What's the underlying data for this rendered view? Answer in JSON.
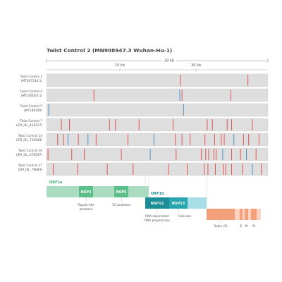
{
  "title": "Twist Control 2 (MN908947.3 Wuhan-Hu-1)",
  "genome_length_label": "29 kb",
  "axis_ticks": [
    "10 kb",
    "20 kb"
  ],
  "colors": {
    "track_bg": "#dedede",
    "track_border": "#cccccc",
    "mut_red": "#e05555",
    "mut_blue": "#4a90c8",
    "orf1a_light": "#a9dcc0",
    "orf1a_dark": "#5cbf8a",
    "orf1b_dark": "#1a8d96",
    "orf1b_light": "#a6dde6",
    "spike": "#f2a07a",
    "spike_light": "#fbd3c0",
    "orf1a_text": "#3daa6e",
    "orf1b_text": "#1a8d96"
  },
  "tracks": [
    {
      "name": "Twist Control 1",
      "id": "(MT007544.1)",
      "muts": [
        [
          18.1,
          "r"
        ],
        [
          27.2,
          "r"
        ]
      ]
    },
    {
      "name": "Twist Control 4",
      "id": "(MT106054.1)",
      "muts": [
        [
          6.4,
          "r"
        ],
        [
          18.0,
          "b"
        ],
        [
          18.3,
          "r"
        ],
        [
          24.9,
          "r"
        ]
      ]
    },
    {
      "name": "Twist Control 5",
      "id": "(MT188340)",
      "muts": [
        [
          0.3,
          "b"
        ],
        [
          18.5,
          "b"
        ]
      ]
    },
    {
      "name": "Twist Control 7",
      "id": "(EPI_ISL_418227)",
      "muts": [
        [
          2.0,
          "r"
        ],
        [
          3.1,
          "r"
        ],
        [
          8.5,
          "r"
        ],
        [
          9.3,
          "r"
        ],
        [
          12.5,
          "r"
        ],
        [
          17.1,
          "r"
        ],
        [
          21.7,
          "r"
        ],
        [
          22.4,
          "r"
        ],
        [
          24.4,
          "r"
        ],
        [
          25.0,
          "r"
        ],
        [
          27.8,
          "r"
        ]
      ]
    },
    {
      "name": "Twist Control 14",
      "id": "(EPI_ISL_710528)",
      "muts": [
        [
          1.5,
          "r"
        ],
        [
          2.3,
          "r"
        ],
        [
          2.9,
          "b"
        ],
        [
          4.3,
          "r"
        ],
        [
          5.6,
          "b"
        ],
        [
          6.7,
          "r"
        ],
        [
          11.0,
          "r"
        ],
        [
          14.5,
          "b"
        ],
        [
          17.4,
          "r"
        ],
        [
          18.3,
          "r"
        ],
        [
          19.4,
          "r"
        ],
        [
          21.4,
          "r"
        ],
        [
          22.7,
          "r"
        ],
        [
          23.6,
          "r"
        ],
        [
          24.0,
          "r"
        ],
        [
          25.3,
          "b"
        ],
        [
          26.6,
          "r"
        ],
        [
          27.3,
          "r"
        ],
        [
          28.7,
          "r"
        ]
      ]
    },
    {
      "name": "Twist Control 16",
      "id": "(EPI_ISL_678597)",
      "muts": [
        [
          0.2,
          "r"
        ],
        [
          3.4,
          "r"
        ],
        [
          5.1,
          "r"
        ],
        [
          10.1,
          "r"
        ],
        [
          14.0,
          "b"
        ],
        [
          17.5,
          "r"
        ],
        [
          20.9,
          "r"
        ],
        [
          21.5,
          "r"
        ],
        [
          21.9,
          "r"
        ],
        [
          22.6,
          "r"
        ],
        [
          22.9,
          "r"
        ],
        [
          23.8,
          "b"
        ],
        [
          25.0,
          "r"
        ],
        [
          26.2,
          "r"
        ],
        [
          27.0,
          "b"
        ],
        [
          28.3,
          "r"
        ]
      ]
    },
    {
      "name": "Twist Control 17",
      "id": "(EPI_ISL_79683)",
      "muts": [
        [
          0.9,
          "r"
        ],
        [
          4.2,
          "r"
        ],
        [
          8.2,
          "r"
        ],
        [
          11.7,
          "r"
        ],
        [
          16.5,
          "r"
        ],
        [
          19.0,
          "r"
        ],
        [
          21.3,
          "r"
        ],
        [
          21.8,
          "r"
        ],
        [
          22.8,
          "r"
        ],
        [
          23.9,
          "r"
        ],
        [
          24.2,
          "r"
        ],
        [
          25.0,
          "r"
        ],
        [
          26.5,
          "r"
        ],
        [
          27.8,
          "b"
        ],
        [
          29.0,
          "r"
        ]
      ]
    }
  ],
  "genes": {
    "orf1a_label": "ORF1a",
    "orf1b_label": "ORF1b",
    "nsp3": "NSP3",
    "nsp5": "NSP5",
    "nsp12": "NSP12",
    "nsp13": "NSP13",
    "nsp3_desc": [
      "Papain-like",
      "protease"
    ],
    "nsp5_desc": "3C-protease",
    "nsp12_desc": [
      "RNA-dependent",
      "RNA polymerase"
    ],
    "nsp13_desc": "Helicase",
    "spike_desc": "Spike (S)",
    "e_label": "E",
    "m_label": "M",
    "n_label": "N"
  }
}
